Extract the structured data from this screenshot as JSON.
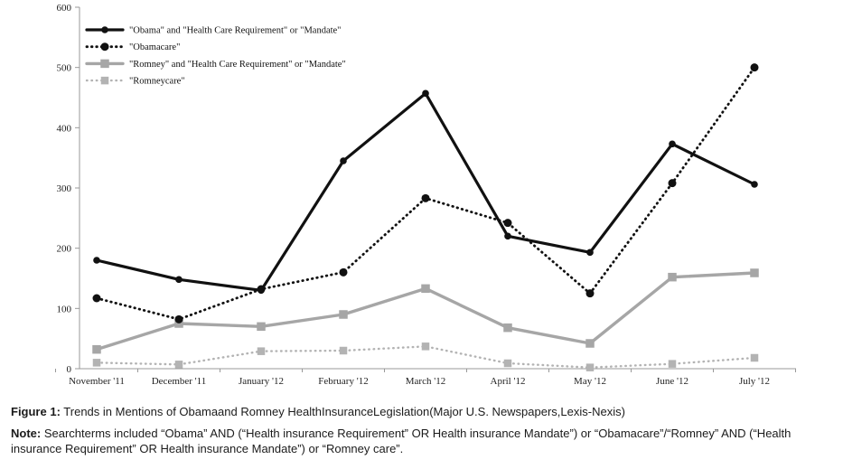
{
  "chart_data": {
    "type": "line",
    "categories": [
      "November '11",
      "December '11",
      "January '12",
      "February '12",
      "March '12",
      "April '12",
      "May '12",
      "June '12",
      "July '12"
    ],
    "series": [
      {
        "name": "\"Obama\" and \"Health Care Requirement\" or \"Mandate\"",
        "values": [
          180,
          148,
          130,
          345,
          457,
          220,
          193,
          373,
          306
        ],
        "color": "#111111",
        "line_style": "solid",
        "marker": "circle",
        "marker_size": 7.6,
        "line_width": 3.2
      },
      {
        "name": "\"Obamacare\"",
        "values": [
          117,
          82,
          132,
          160,
          283,
          242,
          125,
          308,
          500
        ],
        "color": "#111111",
        "line_style": "dotted",
        "marker": "circle",
        "marker_size": 9,
        "line_width": 2.8
      },
      {
        "name": "\"Romney\" and \"Health Care Requirement\" or \"Mandate\"",
        "values": [
          32,
          75,
          70,
          90,
          133,
          68,
          42,
          152,
          159
        ],
        "color": "#a6a6a6",
        "line_style": "solid",
        "marker": "square",
        "marker_size": 9.5,
        "line_width": 3.4
      },
      {
        "name": "\"Romneycare\"",
        "values": [
          10,
          7,
          29,
          30,
          37,
          9,
          2,
          8,
          18
        ],
        "color": "#b3b3b3",
        "line_style": "dotted",
        "marker": "square",
        "marker_size": 8.5,
        "line_width": 2.4
      }
    ],
    "title": "",
    "xlabel": "",
    "ylabel": "",
    "ylim": [
      0,
      600
    ],
    "yticks": [
      0,
      100,
      200,
      300,
      400,
      500,
      600
    ],
    "grid": false,
    "legend_position": "top-left-inside"
  },
  "caption": {
    "figure_label": "Figure 1:",
    "figure_text": "Trends in Mentions of Obamaand Romney HealthInsuranceLegislation(Major U.S. Newspapers,Lexis-Nexis)",
    "note_label": "Note:",
    "note_text": "Searchterms included “Obama” AND (“Health insurance Requirement” OR Health insurance Mandate”) or “Obamacare”/“Romney” AND (“Health insurance Requirement” OR Health insurance Mandate”) or “Romney care”."
  },
  "colors": {
    "axis": "#999999",
    "tick_text": "#222222"
  }
}
